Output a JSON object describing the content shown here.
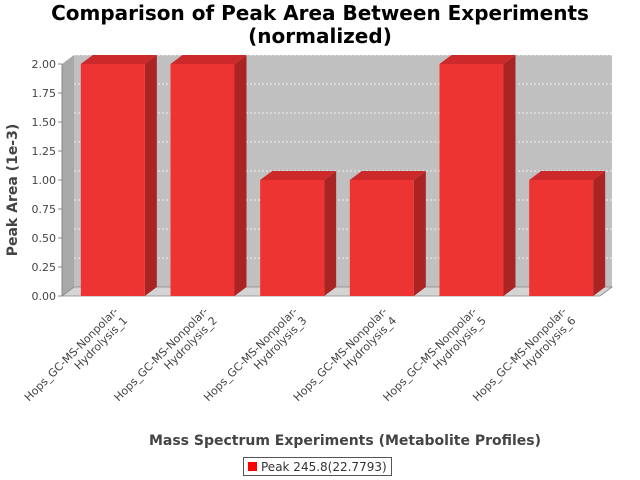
{
  "chart_data": {
    "type": "bar",
    "title": "Comparison of Peak Area Between Experiments (normalized)",
    "title_lines": [
      "Comparison of Peak Area Between Experiments",
      "(normalized)"
    ],
    "xlabel": "Mass Spectrum Experiments (Metabolite Profiles)",
    "ylabel": "Peak Area (1e-3)",
    "ylim": [
      0,
      2.0
    ],
    "yticks": [
      "0.00",
      "0.25",
      "0.50",
      "0.75",
      "1.00",
      "1.25",
      "1.50",
      "1.75",
      "2.00"
    ],
    "categories": [
      "Hops_GC-MS-Nonpolar-Hydrolysis_1",
      "Hops_GC-MS-Nonpolar-Hydrolysis_2",
      "Hops_GC-MS-Nonpolar-Hydrolysis_3",
      "Hops_GC-MS-Nonpolar-Hydrolysis_4",
      "Hops_GC-MS-Nonpolar-Hydrolysis_5",
      "Hops_GC-MS-Nonpolar-Hydrolysis_6"
    ],
    "category_label_lines": [
      [
        "Hops_GC-MS-Nonpolar-",
        "Hydrolysis_1"
      ],
      [
        "Hops_GC-MS-Nonpolar-",
        "Hydrolysis_2"
      ],
      [
        "Hops_GC-MS-Nonpolar-",
        "Hydrolysis_3"
      ],
      [
        "Hops_GC-MS-Nonpolar-",
        "Hydrolysis_4"
      ],
      [
        "Hops_GC-MS-Nonpolar-",
        "Hydrolysis_5"
      ],
      [
        "Hops_GC-MS-Nonpolar-",
        "Hydrolysis_6"
      ]
    ],
    "series": [
      {
        "name": "Peak 245.8(22.7793)",
        "values": [
          2.0,
          2.0,
          1.0,
          1.0,
          2.0,
          1.0
        ]
      }
    ],
    "grid": true,
    "legend_position": "bottom"
  },
  "colors": {
    "bar_front": "#ee3333",
    "bar_top": "#cc2a2a",
    "bar_side": "#aa2424",
    "plot_back": "#c0c0c0",
    "plot_wall": "#a8a8a8",
    "legend_swatch": "#ff0000"
  }
}
